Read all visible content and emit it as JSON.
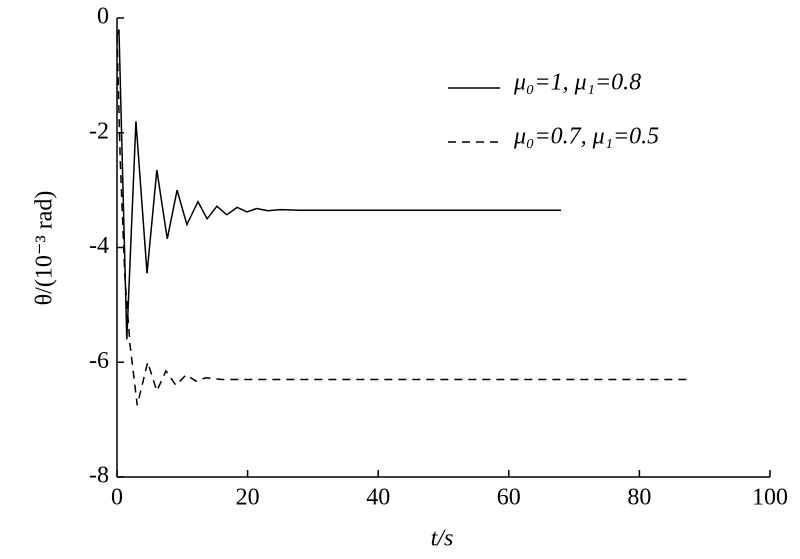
{
  "chart_data": {
    "type": "line",
    "x_label": "t/s",
    "y_label": "θ/(10⁻³ rad)",
    "xlim": [
      0,
      100
    ],
    "xticks": [
      0,
      20,
      40,
      60,
      80,
      100
    ],
    "ylim": [
      -8,
      0
    ],
    "yticks": [
      -8,
      -6,
      -4,
      -2,
      0
    ],
    "legend": "top-right",
    "series": [
      {
        "name": "μ₀=1, μ₁=0.8",
        "color": "#000000",
        "dash": "solid",
        "x": [
          0,
          0.3,
          1.5,
          2.9,
          4.6,
          6.1,
          7.7,
          9.2,
          10.7,
          12.4,
          13.8,
          15.3,
          16.8,
          18.4,
          19.9,
          21.4,
          23.1,
          25,
          28,
          68
        ],
        "values": [
          -0.3,
          -0.2,
          -5.6,
          -1.8,
          -4.45,
          -2.65,
          -3.85,
          -3.0,
          -3.6,
          -3.2,
          -3.5,
          -3.28,
          -3.43,
          -3.3,
          -3.38,
          -3.32,
          -3.36,
          -3.34,
          -3.35,
          -3.35
        ]
      },
      {
        "name": "μ₀=0.7, μ₁=0.5",
        "color": "#000000",
        "dash": "dashed",
        "x": [
          0,
          0.5,
          1.2,
          2.0,
          3.1,
          4.7,
          6.1,
          7.5,
          9.0,
          10.6,
          12.1,
          13.6,
          16,
          88
        ],
        "values": [
          -0.3,
          -2.5,
          -4.5,
          -5.7,
          -6.75,
          -6.0,
          -6.5,
          -6.15,
          -6.4,
          -6.22,
          -6.33,
          -6.27,
          -6.3,
          -6.3
        ]
      }
    ]
  }
}
